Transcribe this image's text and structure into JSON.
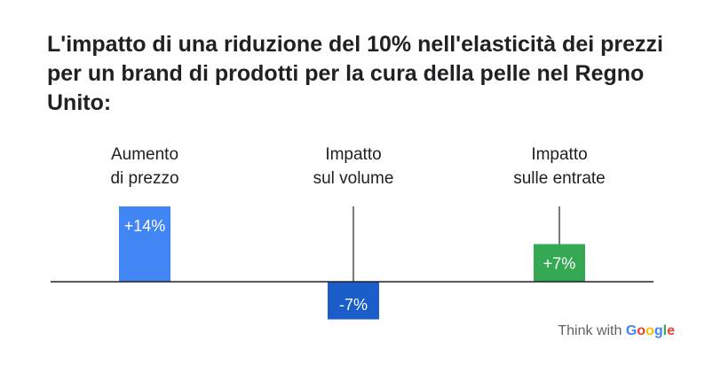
{
  "chart_data": {
    "type": "bar",
    "title": "L'impatto di una riduzione del 10% nell'elasticità dei prezzi per un brand di prodotti per la cura della pelle nel Regno Unito:",
    "categories": [
      [
        "Aumento",
        "di prezzo"
      ],
      [
        "Impatto",
        "sul volume"
      ],
      [
        "Impatto",
        "sulle entrate"
      ]
    ],
    "values": [
      14,
      -7,
      7
    ],
    "data_labels": [
      "+14%",
      "-7%",
      "+7%"
    ],
    "colors": [
      "#4285f4",
      "#1a5dc8",
      "#34a853"
    ],
    "ylim": [
      -7,
      14
    ],
    "grid": false,
    "legend": "none"
  },
  "branding": {
    "prefix": "Think with ",
    "brand_letters": [
      {
        "char": "G",
        "color": "#4285f4"
      },
      {
        "char": "o",
        "color": "#ea4335"
      },
      {
        "char": "o",
        "color": "#fbbc05"
      },
      {
        "char": "g",
        "color": "#4285f4"
      },
      {
        "char": "l",
        "color": "#34a853"
      },
      {
        "char": "e",
        "color": "#ea4335"
      }
    ]
  }
}
